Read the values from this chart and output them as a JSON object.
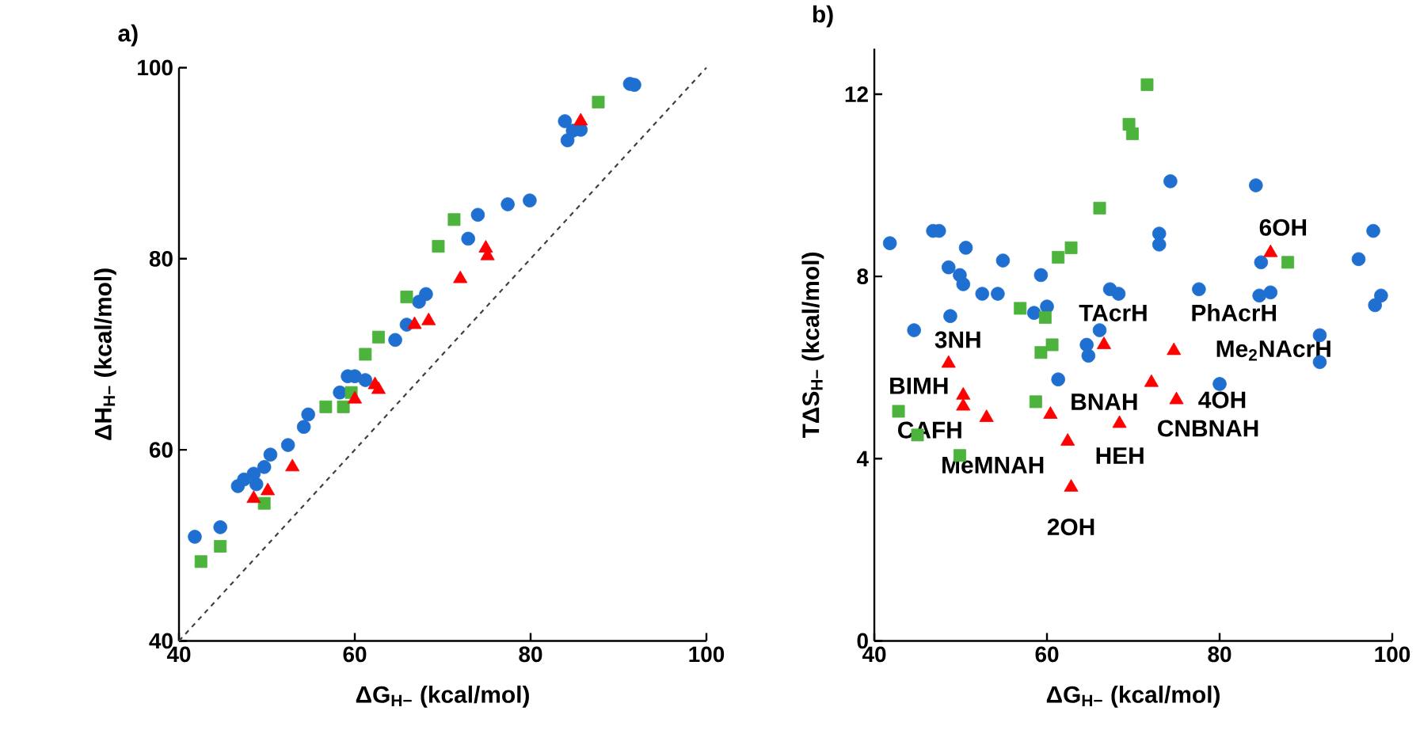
{
  "chart_data": [
    {
      "type": "scatter",
      "title": "a)",
      "xlabel": "ΔG$_{H−}$ (kcal/mol)",
      "ylabel": "ΔH$_{H−}$ (kcal/mol)",
      "xlim": [
        40,
        100
      ],
      "ylim": [
        40,
        100
      ],
      "xticks": [
        40,
        60,
        80,
        100
      ],
      "yticks": [
        40,
        60,
        80,
        100
      ],
      "series": [
        {
          "color": "#1f6fd0",
          "marker": "circle",
          "x": [
            91.3,
            91.8,
            83.9,
            85.7,
            84.8,
            84.2,
            77.4,
            79.9,
            74.0,
            72.9,
            68.1,
            67.3,
            65.9,
            64.6,
            41.8,
            44.7,
            46.7,
            47.4,
            48.5,
            48.8,
            49.7,
            50.4,
            52.4,
            54.2,
            54.7,
            58.3,
            59.2,
            60.0,
            61.2
          ],
          "values": [
            98.3,
            98.2,
            94.4,
            93.5,
            93.4,
            92.4,
            85.7,
            86.1,
            84.6,
            82.1,
            76.3,
            75.5,
            73.1,
            71.5,
            50.9,
            51.9,
            56.2,
            56.9,
            57.5,
            56.4,
            58.2,
            59.5,
            60.5,
            62.4,
            63.7,
            66.0,
            67.7,
            67.7,
            67.3
          ]
        },
        {
          "color": "#4cb33c",
          "marker": "square",
          "x": [
            87.7,
            71.3,
            69.5,
            65.9,
            62.7,
            61.2,
            42.5,
            44.7,
            49.7,
            56.7,
            58.7,
            59.6
          ],
          "values": [
            96.4,
            84.1,
            81.3,
            76.0,
            71.8,
            70.0,
            48.3,
            49.9,
            54.4,
            64.5,
            64.5,
            66.0
          ]
        },
        {
          "color": "#ff0000",
          "marker": "triangle",
          "x": [
            85.7,
            74.9,
            75.1,
            72.0,
            68.4,
            66.8,
            48.5,
            50.1,
            52.9,
            60.0,
            62.3,
            62.7
          ],
          "values": [
            94.4,
            81.1,
            80.3,
            77.9,
            73.5,
            73.1,
            54.9,
            55.7,
            58.2,
            65.3,
            66.8,
            66.3
          ]
        },
        {
          "type": "line",
          "color": "#404040",
          "line_style": "dashed",
          "x": [
            40,
            100
          ],
          "values": [
            40,
            100
          ]
        }
      ]
    },
    {
      "type": "scatter",
      "title": "b)",
      "xlabel": "ΔG$_{H−}$ (kcal/mol)",
      "ylabel": "TΔS$_{H−}$ (kcal/mol)",
      "xlim": [
        40,
        100
      ],
      "ylim": [
        0,
        13
      ],
      "xticks": [
        40,
        60,
        80,
        100
      ],
      "yticks": [
        0,
        4,
        8,
        12
      ],
      "series": [
        {
          "color": "#1f6fd0",
          "marker": "circle",
          "x": [
            41.8,
            46.8,
            47.5,
            50.6,
            48.6,
            49.9,
            50.3,
            52.5,
            54.3,
            54.9,
            59.3,
            60.0,
            58.5,
            48.8,
            44.6,
            66.1,
            64.6,
            74.3,
            73.0,
            73.0,
            67.3,
            68.3,
            77.6,
            84.2,
            84.8,
            84.6,
            85.9,
            91.6,
            96.1,
            97.8,
            98.0,
            98.7,
            64.8,
            61.3,
            80.0,
            91.6
          ],
          "values": [
            8.73,
            9.0,
            9.0,
            8.63,
            8.2,
            8.03,
            7.83,
            7.62,
            7.62,
            8.35,
            8.03,
            7.34,
            7.2,
            7.13,
            6.82,
            6.82,
            6.5,
            10.09,
            8.94,
            8.7,
            7.72,
            7.62,
            7.72,
            10.0,
            8.31,
            7.58,
            7.65,
            6.71,
            8.38,
            9.0,
            7.37,
            7.58,
            6.26,
            5.74,
            5.64,
            6.12
          ]
        },
        {
          "color": "#4cb33c",
          "marker": "square",
          "x": [
            71.6,
            69.5,
            69.9,
            66.1,
            62.8,
            61.3,
            87.9,
            56.9,
            59.8,
            60.6,
            59.3,
            58.7,
            42.8,
            45.0,
            49.9
          ],
          "values": [
            12.21,
            11.34,
            11.13,
            9.5,
            8.63,
            8.42,
            8.31,
            7.3,
            7.1,
            6.5,
            6.33,
            5.25,
            5.04,
            4.52,
            4.07
          ]
        },
        {
          "color": "#ff0000",
          "marker": "triangle",
          "x": [
            85.9,
            66.6,
            74.7,
            48.6,
            50.3,
            50.3,
            53.0,
            60.4,
            62.4,
            62.8,
            68.4,
            72.1,
            75.0
          ],
          "values": [
            8.52,
            6.5,
            6.37,
            6.09,
            5.39,
            5.15,
            4.9,
            4.97,
            4.38,
            3.37,
            4.77,
            5.67,
            5.29
          ]
        }
      ],
      "annotations": [
        {
          "text": "6OH",
          "x": 85.9,
          "y": 8.52
        },
        {
          "text": "TAcrH",
          "x": 66.6,
          "y": 6.5
        },
        {
          "text": "PhAcrH",
          "x": 74.7,
          "y": 6.37
        },
        {
          "text": "3NH",
          "x": 48.6,
          "y": 6.09
        },
        {
          "text": "Me$_{2}$NAcrH",
          "x": 74.7,
          "y": 6.37
        },
        {
          "text": "BIMH",
          "x": 50.3,
          "y": 5.39
        },
        {
          "text": "BNAH",
          "x": 60.4,
          "y": 4.97
        },
        {
          "text": "4OH",
          "x": 75.0,
          "y": 5.29
        },
        {
          "text": "CAFH",
          "x": 50.3,
          "y": 5.15
        },
        {
          "text": "CNBNAH",
          "x": 68.4,
          "y": 4.77
        },
        {
          "text": "HEH",
          "x": 62.4,
          "y": 4.38
        },
        {
          "text": "MeMNAH",
          "x": 53.0,
          "y": 4.9
        },
        {
          "text": "2OH",
          "x": 62.8,
          "y": 3.37
        }
      ]
    }
  ]
}
